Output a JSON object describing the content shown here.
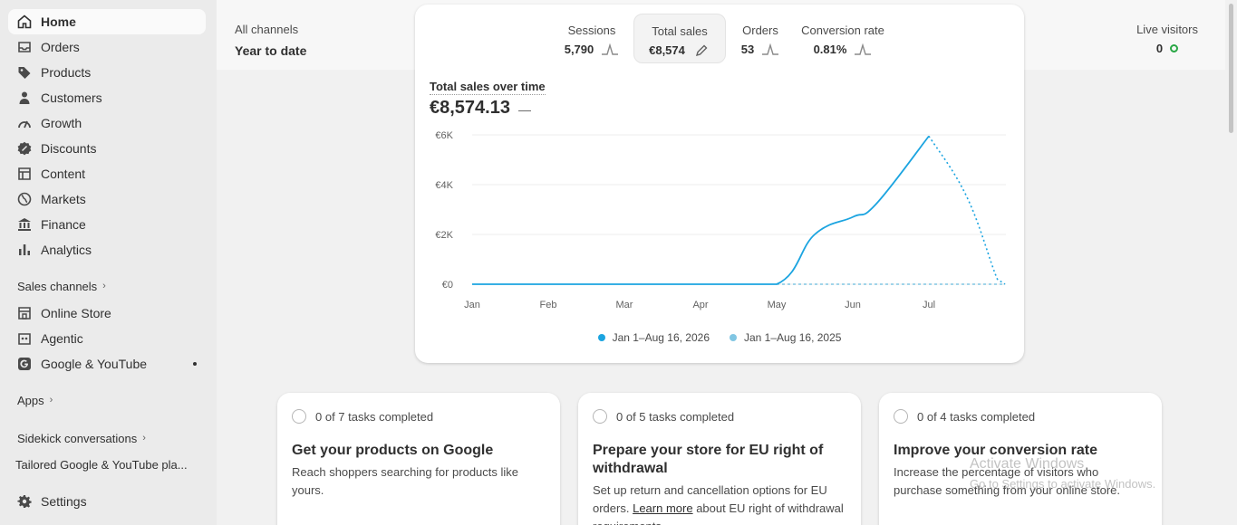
{
  "sidebar": {
    "items": [
      {
        "label": "Home",
        "icon": "home-icon"
      },
      {
        "label": "Orders",
        "icon": "inbox-icon"
      },
      {
        "label": "Products",
        "icon": "tag-icon"
      },
      {
        "label": "Customers",
        "icon": "person-icon"
      },
      {
        "label": "Growth",
        "icon": "gauge-icon"
      },
      {
        "label": "Discounts",
        "icon": "discount-icon"
      },
      {
        "label": "Content",
        "icon": "content-icon"
      },
      {
        "label": "Markets",
        "icon": "globe-icon"
      },
      {
        "label": "Finance",
        "icon": "bank-icon"
      },
      {
        "label": "Analytics",
        "icon": "bar-chart-icon"
      }
    ],
    "sales_channels_label": "Sales channels",
    "channels": [
      {
        "label": "Online Store",
        "icon": "store-icon"
      },
      {
        "label": "Agentic",
        "icon": "agent-icon"
      },
      {
        "label": "Google & YouTube",
        "icon": "google-icon"
      }
    ],
    "apps_label": "Apps",
    "sidekick_label": "Sidekick conversations",
    "conversation": "Tailored Google & YouTube pla...",
    "settings_label": "Settings"
  },
  "header": {
    "channel": "All channels",
    "period": "Year to date",
    "live_label": "Live visitors",
    "live_value": "0"
  },
  "metrics": [
    {
      "label": "Sessions",
      "value": "5,790"
    },
    {
      "label": "Total sales",
      "value": "€8,574"
    },
    {
      "label": "Orders",
      "value": "53"
    },
    {
      "label": "Conversion rate",
      "value": "0.81%"
    }
  ],
  "chart_data": {
    "type": "line",
    "title": "Total sales over time",
    "total": "€8,574.13",
    "total_suffix": "—",
    "ylim": [
      0,
      6000
    ],
    "y_ticks": [
      "€0",
      "€2K",
      "€4K",
      "€6K"
    ],
    "categories": [
      "Jan",
      "Feb",
      "Mar",
      "Apr",
      "May",
      "Jun",
      "Jul"
    ],
    "series": [
      {
        "name": "Jan 1–Aug 16, 2026",
        "color": "#1ba4e0",
        "x": [
          1,
          2,
          3,
          4,
          5,
          5.5,
          6,
          6.3,
          7
        ],
        "values": [
          0,
          0,
          0,
          0,
          0,
          2000,
          2700,
          3200,
          5950
        ]
      },
      {
        "name": "Jan 1–Aug 16, 2025",
        "color": "#81c6e3",
        "x": [
          1,
          2,
          3,
          4,
          5,
          6,
          7,
          8
        ],
        "values": [
          0,
          0,
          0,
          0,
          0,
          0,
          0,
          0
        ]
      }
    ],
    "projection": {
      "x": [
        7,
        7.5,
        7.9,
        8
      ],
      "values": [
        5950,
        3500,
        200,
        0
      ]
    }
  },
  "tasks": [
    {
      "progress": "0 of 7 tasks completed",
      "title": "Get your products on Google",
      "text": "Reach shoppers searching for products like yours."
    },
    {
      "progress": "0 of 5 tasks completed",
      "title": "Prepare your store for EU right of withdrawal",
      "text": "Set up return and cancellation options for EU orders.",
      "link": "Learn more",
      "text_after": "about EU right of withdrawal requirements."
    },
    {
      "progress": "0 of 4 tasks completed",
      "title": "Improve your conversion rate",
      "text": "Increase the percentage of visitors who purchase something from your online store."
    }
  ],
  "watermark": {
    "line1": "Activate Windows",
    "line2": "Go to Settings to activate Windows."
  }
}
